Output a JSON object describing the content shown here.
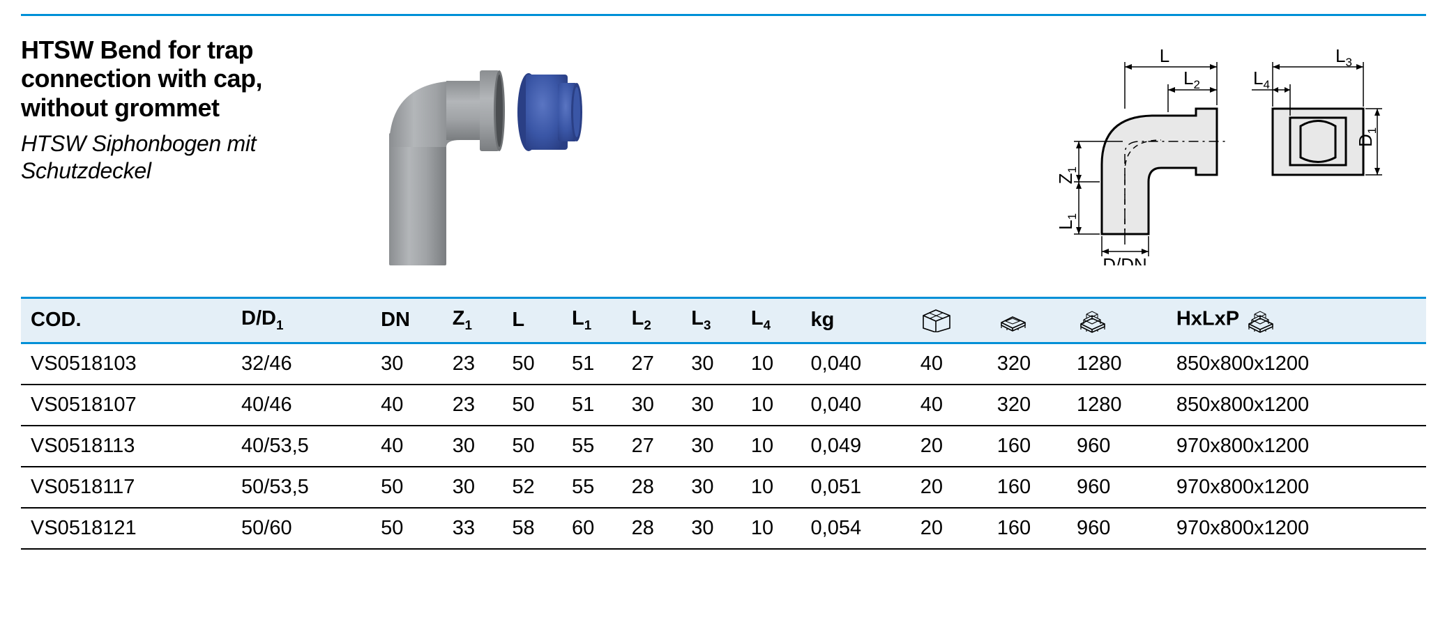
{
  "rule_color": "#0090d7",
  "header_bg": "#e4eff7",
  "title": {
    "en": "HTSW Bend for trap connection with cap, without grommet",
    "de": "HTSW Siphonbogen mit Schutzdeckel"
  },
  "photo": {
    "bend_color": "#9ea1a4",
    "bend_shadow": "#7e8285",
    "cap_color": "#3a56a6",
    "cap_shadow": "#2c468e"
  },
  "diagram": {
    "stroke": "#000000",
    "fill": "#e8e8e8",
    "labels": {
      "L": "L",
      "L1": "L",
      "L1_sub": "1",
      "L2": "L",
      "L2_sub": "2",
      "L3": "L",
      "L3_sub": "3",
      "L4": "L",
      "L4_sub": "4",
      "Z1": "Z",
      "Z1_sub": "1",
      "D1": "D",
      "D1_sub": "1",
      "DDN": "D/DN"
    }
  },
  "table": {
    "columns": [
      {
        "key": "cod",
        "label": "COD."
      },
      {
        "key": "dd1",
        "label": "D/D",
        "sub": "1"
      },
      {
        "key": "dn",
        "label": "DN"
      },
      {
        "key": "z1",
        "label": "Z",
        "sub": "1"
      },
      {
        "key": "l",
        "label": "L"
      },
      {
        "key": "l1",
        "label": "L",
        "sub": "1"
      },
      {
        "key": "l2",
        "label": "L",
        "sub": "2"
      },
      {
        "key": "l3",
        "label": "L",
        "sub": "3"
      },
      {
        "key": "l4",
        "label": "L",
        "sub": "4"
      },
      {
        "key": "kg",
        "label": "kg"
      },
      {
        "key": "box",
        "icon": "box"
      },
      {
        "key": "pallet_s",
        "icon": "pallet-small"
      },
      {
        "key": "pallet_l",
        "icon": "pallet-large"
      },
      {
        "key": "hlp",
        "label": "HxLxP",
        "icon_after": "pallet-large"
      }
    ],
    "rows": [
      {
        "cod": "VS0518103",
        "dd1": "32/46",
        "dn": "30",
        "z1": "23",
        "l": "50",
        "l1": "51",
        "l2": "27",
        "l3": "30",
        "l4": "10",
        "kg": "0,040",
        "box": "40",
        "pallet_s": "320",
        "pallet_l": "1280",
        "hlp": "850x800x1200"
      },
      {
        "cod": "VS0518107",
        "dd1": "40/46",
        "dn": "40",
        "z1": "23",
        "l": "50",
        "l1": "51",
        "l2": "30",
        "l3": "30",
        "l4": "10",
        "kg": "0,040",
        "box": "40",
        "pallet_s": "320",
        "pallet_l": "1280",
        "hlp": "850x800x1200"
      },
      {
        "cod": "VS0518113",
        "dd1": "40/53,5",
        "dn": "40",
        "z1": "30",
        "l": "50",
        "l1": "55",
        "l2": "27",
        "l3": "30",
        "l4": "10",
        "kg": "0,049",
        "box": "20",
        "pallet_s": "160",
        "pallet_l": "960",
        "hlp": "970x800x1200"
      },
      {
        "cod": "VS0518117",
        "dd1": "50/53,5",
        "dn": "50",
        "z1": "30",
        "l": "52",
        "l1": "55",
        "l2": "28",
        "l3": "30",
        "l4": "10",
        "kg": "0,051",
        "box": "20",
        "pallet_s": "160",
        "pallet_l": "960",
        "hlp": "970x800x1200"
      },
      {
        "cod": "VS0518121",
        "dd1": "50/60",
        "dn": "50",
        "z1": "33",
        "l": "58",
        "l1": "60",
        "l2": "28",
        "l3": "30",
        "l4": "10",
        "kg": "0,054",
        "box": "20",
        "pallet_s": "160",
        "pallet_l": "960",
        "hlp": "970x800x1200"
      }
    ]
  }
}
